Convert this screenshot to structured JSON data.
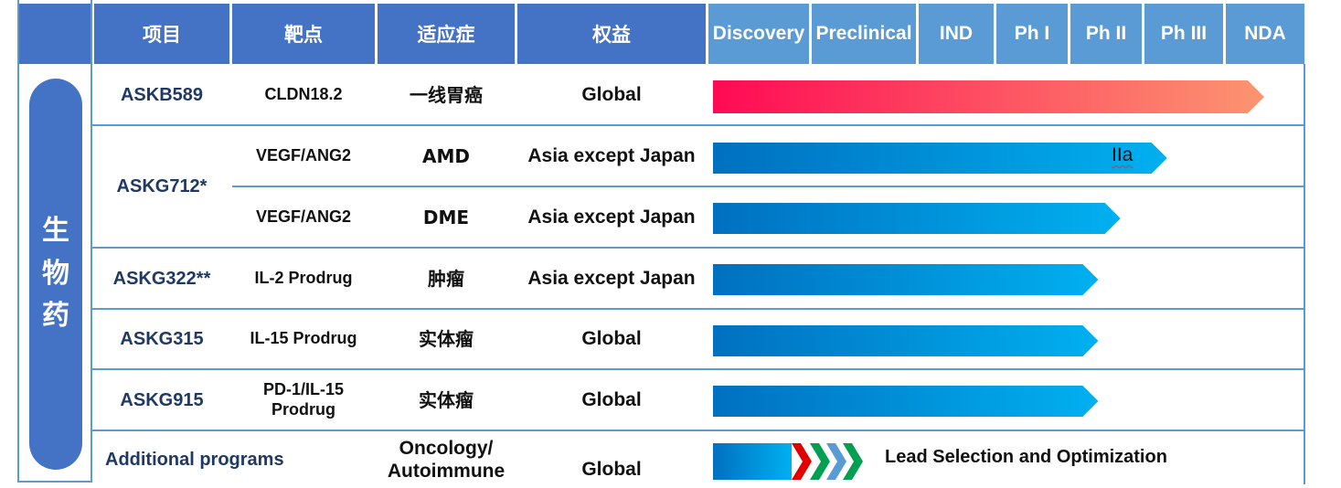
{
  "header": {
    "project": "项目",
    "target": "靶点",
    "indication": "适应症",
    "rights": "权益",
    "stages": [
      "Discovery",
      "Preclinical",
      "IND",
      "Ph I",
      "Ph II",
      "Ph III",
      "NDA"
    ]
  },
  "category_label": [
    "生",
    "物",
    "药"
  ],
  "rows": [
    {
      "project": "ASKB589",
      "target": "CLDN18.2",
      "indication": "一线胃癌",
      "rights": "Global",
      "stage_progress": 6.5,
      "bar_style": "gradient-red"
    },
    {
      "project": "ASKG712*",
      "target": "VEGF/ANG2",
      "indication": "AMD",
      "rights": "Asia except Japan",
      "stage_progress": 5.3,
      "bar_style": "gradient-blue",
      "note": "IIa"
    },
    {
      "project": "ASKG712*",
      "target": "VEGF/ANG2",
      "indication": "DME",
      "rights": "Asia except Japan",
      "stage_progress": 4.7,
      "bar_style": "gradient-blue"
    },
    {
      "project": "ASKG322**",
      "target": "IL-2 Prodrug",
      "indication": "肿瘤",
      "rights": "Asia except Japan",
      "stage_progress": 4.4,
      "bar_style": "gradient-blue"
    },
    {
      "project": "ASKG315",
      "target": "IL-15 Prodrug",
      "indication": "实体瘤",
      "rights": "Global",
      "stage_progress": 4.4,
      "bar_style": "gradient-blue"
    },
    {
      "project": "ASKG915",
      "target": "PD-1/IL-15 Prodrug",
      "indication": "实体瘤",
      "rights": "Global",
      "stage_progress": 4.4,
      "bar_style": "gradient-blue"
    },
    {
      "project": "Additional programs",
      "target": "",
      "indication": "Oncology/ Autoimmune",
      "rights": "Global",
      "stage_progress": 1.0,
      "bar_style": "chevrons",
      "note": "Lead Selection and Optimization"
    }
  ],
  "colors": {
    "header_dark": "#4472c4",
    "header_light": "#5b9bd5",
    "category_bg": "#4472c4",
    "project_text": "#1f3864",
    "red_start": "#ff0a54",
    "red_end": "#fc9570",
    "blue_start": "#0070c0",
    "blue_end": "#00b0f0",
    "chevron_colors": [
      "#e00000",
      "#00a050",
      "#5b9bd5",
      "#00a050"
    ]
  }
}
